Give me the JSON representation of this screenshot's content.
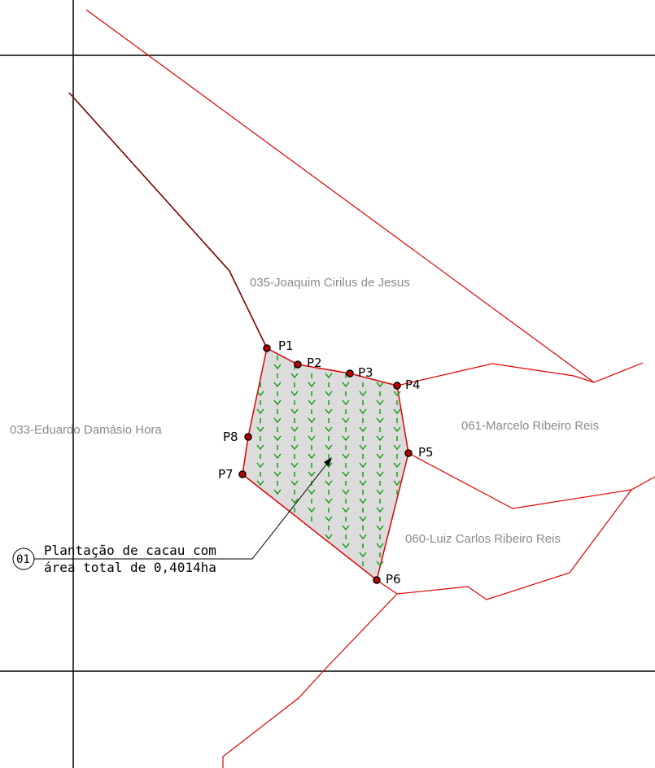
{
  "owners": {
    "joaquim": "035-Joaquim Cirilus de Jesus",
    "eduardo": "033-Eduardo Damásio Hora",
    "marcelo": "061-Marcelo Ribeiro Reis",
    "luiz": "060-Luiz Carlos Ribeiro Reis"
  },
  "points": {
    "p1": "P1",
    "p2": "P2",
    "p3": "P3",
    "p4": "P4",
    "p5": "P5",
    "p6": "P6",
    "p7": "P7",
    "p8": "P8"
  },
  "callout": {
    "number": "01",
    "line1": "Plantação de cacau com",
    "line2": "área total de 0,4014ha"
  },
  "colors": {
    "boundary": "#e00000",
    "plot_fill": "#dcdcdc",
    "crop_symbol": "#0a9a0a",
    "grid": "#000000",
    "owner_label": "#8a8a8a"
  }
}
